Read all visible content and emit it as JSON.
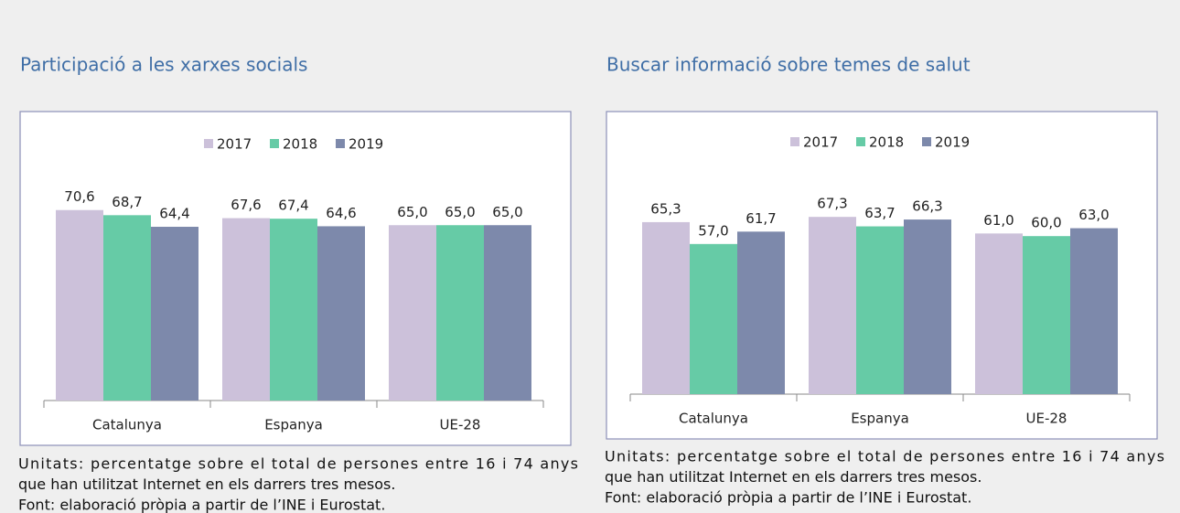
{
  "chart_data": [
    {
      "type": "bar",
      "title": "Participació a les xarxes socials",
      "categories": [
        "Catalunya",
        "Espanya",
        "UE-28"
      ],
      "series": [
        {
          "name": "2017",
          "color": "#ccc1da",
          "values": [
            70.6,
            67.6,
            65.0
          ],
          "value_labels": [
            "70,6",
            "67,6",
            "65,0"
          ]
        },
        {
          "name": "2018",
          "color": "#66cba6",
          "values": [
            68.7,
            67.4,
            65.0
          ],
          "value_labels": [
            "68,7",
            "67,4",
            "65,0"
          ]
        },
        {
          "name": "2019",
          "color": "#7d89ab",
          "values": [
            64.4,
            64.6,
            65.0
          ],
          "value_labels": [
            "64,4",
            "64,6",
            "65,0"
          ]
        }
      ],
      "legend": "top",
      "notes": [
        "Unitats: percentatge sobre el total de persones entre 16 i 74 anys",
        "que han utilitzat Internet en els darrers tres mesos.",
        "Font: elaboració pròpia a partir de l’INE i Eurostat."
      ]
    },
    {
      "type": "bar",
      "title": "Buscar informació sobre temes de salut",
      "categories": [
        "Catalunya",
        "Espanya",
        "UE-28"
      ],
      "series": [
        {
          "name": "2017",
          "color": "#ccc1da",
          "values": [
            65.3,
            67.3,
            61.0
          ],
          "value_labels": [
            "65,3",
            "67,3",
            "61,0"
          ]
        },
        {
          "name": "2018",
          "color": "#66cba6",
          "values": [
            57.0,
            63.7,
            60.0
          ],
          "value_labels": [
            "57,0",
            "63,7",
            "60,0"
          ]
        },
        {
          "name": "2019",
          "color": "#7d89ab",
          "values": [
            61.7,
            66.3,
            63.0
          ],
          "value_labels": [
            "61,7",
            "66,3",
            "63,0"
          ]
        }
      ],
      "legend": "top",
      "notes": [
        "Unitats: percentatge sobre el total de persones entre 16 i 74 anys",
        "que han utilitzat Internet en els darrers tres mesos.",
        "Font: elaboració pròpia a partir de l’INE i Eurostat."
      ]
    }
  ]
}
